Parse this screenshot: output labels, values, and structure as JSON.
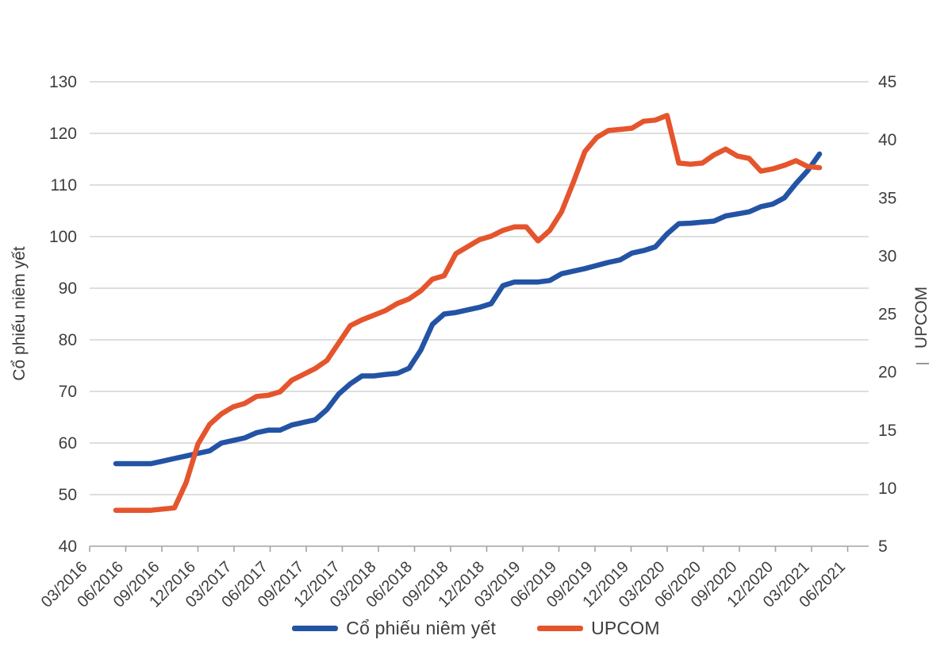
{
  "chart_data": {
    "type": "line",
    "grid": true,
    "legend_position": "bottom",
    "x_tick_labels": [
      "03/2016",
      "06/2016",
      "09/2016",
      "12/2016",
      "03/2017",
      "06/2017",
      "09/2017",
      "12/2017",
      "03/2018",
      "06/2018",
      "09/2018",
      "12/2018",
      "03/2019",
      "06/2019",
      "09/2019",
      "12/2019",
      "03/2020",
      "06/2020",
      "09/2020",
      "12/2020",
      "03/2021",
      "06/2021"
    ],
    "x_monthly": [
      "03/2016",
      "04/2016",
      "05/2016",
      "06/2016",
      "07/2016",
      "08/2016",
      "09/2016",
      "10/2016",
      "11/2016",
      "12/2016",
      "01/2017",
      "02/2017",
      "03/2017",
      "04/2017",
      "05/2017",
      "06/2017",
      "07/2017",
      "08/2017",
      "09/2017",
      "10/2017",
      "11/2017",
      "12/2017",
      "01/2018",
      "02/2018",
      "03/2018",
      "04/2018",
      "05/2018",
      "06/2018",
      "07/2018",
      "08/2018",
      "09/2018",
      "10/2018",
      "11/2018",
      "12/2018",
      "01/2019",
      "02/2019",
      "03/2019",
      "04/2019",
      "05/2019",
      "06/2019",
      "07/2019",
      "08/2019",
      "09/2019",
      "10/2019",
      "11/2019",
      "12/2019",
      "01/2020",
      "02/2020",
      "03/2020",
      "04/2020",
      "05/2020",
      "06/2020",
      "07/2020",
      "08/2020",
      "09/2020",
      "10/2020",
      "11/2020",
      "12/2020",
      "01/2021",
      "02/2021",
      "03/2021"
    ],
    "left_axis": {
      "title": "Cổ phiếu niêm yết",
      "min": 40,
      "max": 130,
      "step": 10,
      "tick_labels": [
        "130",
        "120",
        "110",
        "100",
        "90",
        "80",
        "70",
        "60",
        "50",
        "40"
      ]
    },
    "right_axis": {
      "title": "UPCOM",
      "mark_below_title": "—",
      "min": 5,
      "max": 45,
      "step": 5,
      "tick_labels": [
        "45",
        "40",
        "35",
        "30",
        "25",
        "20",
        "15",
        "10",
        "5"
      ]
    },
    "series": [
      {
        "name": "Cổ phiếu niêm yết",
        "axis": "left",
        "color": "#2353A4",
        "values": [
          56,
          56,
          56,
          56,
          56.5,
          57,
          57.5,
          58,
          58.5,
          60,
          60.5,
          61,
          62,
          62.5,
          62.5,
          63.5,
          64,
          64.5,
          66.5,
          69.5,
          71.5,
          73,
          73,
          73.3,
          73.5,
          74.5,
          78,
          83,
          85,
          85.3,
          85.8,
          86.3,
          87,
          90.5,
          91.2,
          91.2,
          91.2,
          91.5,
          92.8,
          93.3,
          93.8,
          94.4,
          95,
          95.5,
          96.8,
          97.3,
          98,
          100.5,
          102.5,
          102.6,
          102.8,
          103,
          104,
          104.4,
          104.8,
          105.8,
          106.3,
          107.5,
          110.3,
          112.8,
          116
        ]
      },
      {
        "name": "UPCOM",
        "axis": "right",
        "color": "#E5552D",
        "values": [
          8.1,
          8.1,
          8.1,
          8.1,
          8.2,
          8.3,
          10.5,
          13.8,
          15.5,
          16.4,
          17,
          17.3,
          17.9,
          18,
          18.3,
          19.3,
          19.8,
          20.3,
          21,
          22.5,
          24,
          24.5,
          24.9,
          25.3,
          25.9,
          26.3,
          27,
          28,
          28.3,
          30.2,
          30.8,
          31.4,
          31.7,
          32.2,
          32.5,
          32.5,
          31.3,
          32.2,
          33.8,
          36.3,
          39,
          40.2,
          40.8,
          40.9,
          41,
          41.6,
          41.7,
          42.1,
          38,
          37.9,
          38,
          38.7,
          39.2,
          38.6,
          38.4,
          37.3,
          37.5,
          37.8,
          38.2,
          37.7,
          37.6
        ]
      }
    ],
    "colors": {
      "gridline": "#D3D3D3",
      "axis_line": "#A3A3A3",
      "text": "#3D3D3D"
    }
  }
}
